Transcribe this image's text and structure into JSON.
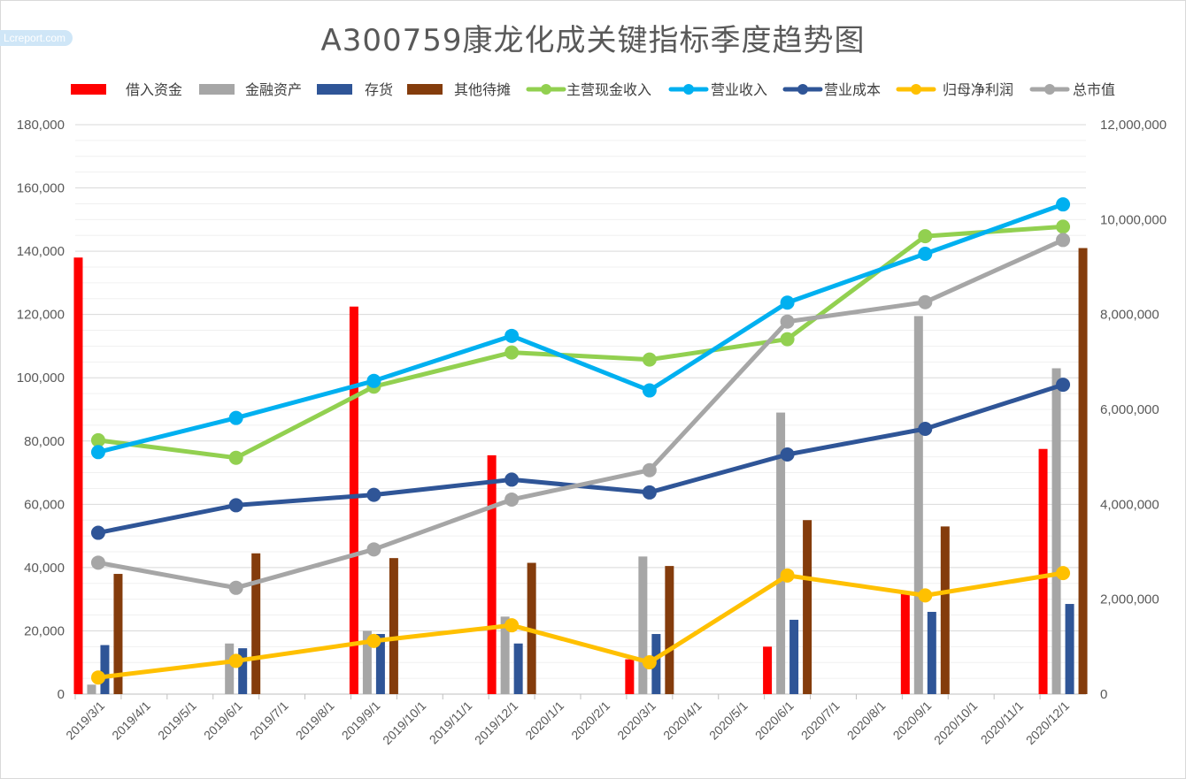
{
  "watermark": "Lcreport.com",
  "chart_data": {
    "type": "bar+line",
    "title": "A300759康龙化成关键指标季度趋势图",
    "x_categories": [
      "2019/3/1",
      "2019/4/1",
      "2019/5/1",
      "2019/6/1",
      "2019/7/1",
      "2019/8/1",
      "2019/9/1",
      "2019/10/1",
      "2019/11/1",
      "2019/12/1",
      "2020/1/1",
      "2020/2/1",
      "2020/3/1",
      "2020/4/1",
      "2020/5/1",
      "2020/6/1",
      "2020/7/1",
      "2020/8/1",
      "2020/9/1",
      "2020/10/1",
      "2020/11/1",
      "2020/12/1"
    ],
    "quarters": [
      "2019/3/1",
      "2019/6/1",
      "2019/9/1",
      "2019/12/1",
      "2020/3/1",
      "2020/6/1",
      "2020/9/1",
      "2020/12/1"
    ],
    "left_axis": {
      "min": 0,
      "max": 180000,
      "step": 20000,
      "ticks": [
        "0",
        "20,000",
        "40,000",
        "60,000",
        "80,000",
        "100,000",
        "120,000",
        "140,000",
        "160,000",
        "180,000"
      ]
    },
    "right_axis": {
      "min": 0,
      "max": 12000000,
      "step": 2000000,
      "ticks": [
        "0",
        "2,000,000",
        "4,000,000",
        "6,000,000",
        "8,000,000",
        "10,000,000",
        "12,000,000"
      ]
    },
    "grid": true,
    "legend_position": "top",
    "bar_series": [
      {
        "name": "借入资金",
        "color": "#ff0000",
        "axis": "left",
        "values": [
          138000,
          0,
          122500,
          75500,
          11000,
          15000,
          32000,
          77500
        ]
      },
      {
        "name": "金融资产",
        "color": "#a6a6a6",
        "axis": "left",
        "values": [
          3000,
          16000,
          20000,
          24500,
          43500,
          89000,
          119500,
          103000
        ]
      },
      {
        "name": "存货",
        "color": "#2f5597",
        "axis": "left",
        "values": [
          15500,
          14500,
          19000,
          16000,
          19000,
          23500,
          26000,
          28500
        ]
      },
      {
        "name": "其他待摊",
        "color": "#843c0c",
        "axis": "left",
        "values": [
          38000,
          44500,
          43000,
          41500,
          40500,
          55000,
          53000,
          141000
        ]
      }
    ],
    "line_series": [
      {
        "name": "主营现金收入",
        "color": "#92d050",
        "axis": "right",
        "values": [
          5350000,
          4980000,
          6480000,
          7200000,
          7050000,
          7480000,
          9650000,
          9850000
        ]
      },
      {
        "name": "营业收入",
        "color": "#00b0f0",
        "axis": "right",
        "values": [
          5100000,
          5820000,
          6600000,
          7550000,
          6400000,
          8250000,
          9280000,
          10320000
        ]
      },
      {
        "name": "营业成本",
        "color": "#2f5597",
        "axis": "right",
        "values": [
          3400000,
          3980000,
          4200000,
          4520000,
          4250000,
          5050000,
          5590000,
          6520000
        ]
      },
      {
        "name": "归母净利润",
        "color": "#ffc000",
        "axis": "right",
        "values": [
          350000,
          700000,
          1120000,
          1450000,
          670000,
          2500000,
          2080000,
          2550000
        ]
      },
      {
        "name": "总市值",
        "color": "#a6a6a6",
        "axis": "right",
        "values": [
          2770000,
          2240000,
          3050000,
          4100000,
          4720000,
          7850000,
          8260000,
          9570000
        ]
      }
    ]
  }
}
